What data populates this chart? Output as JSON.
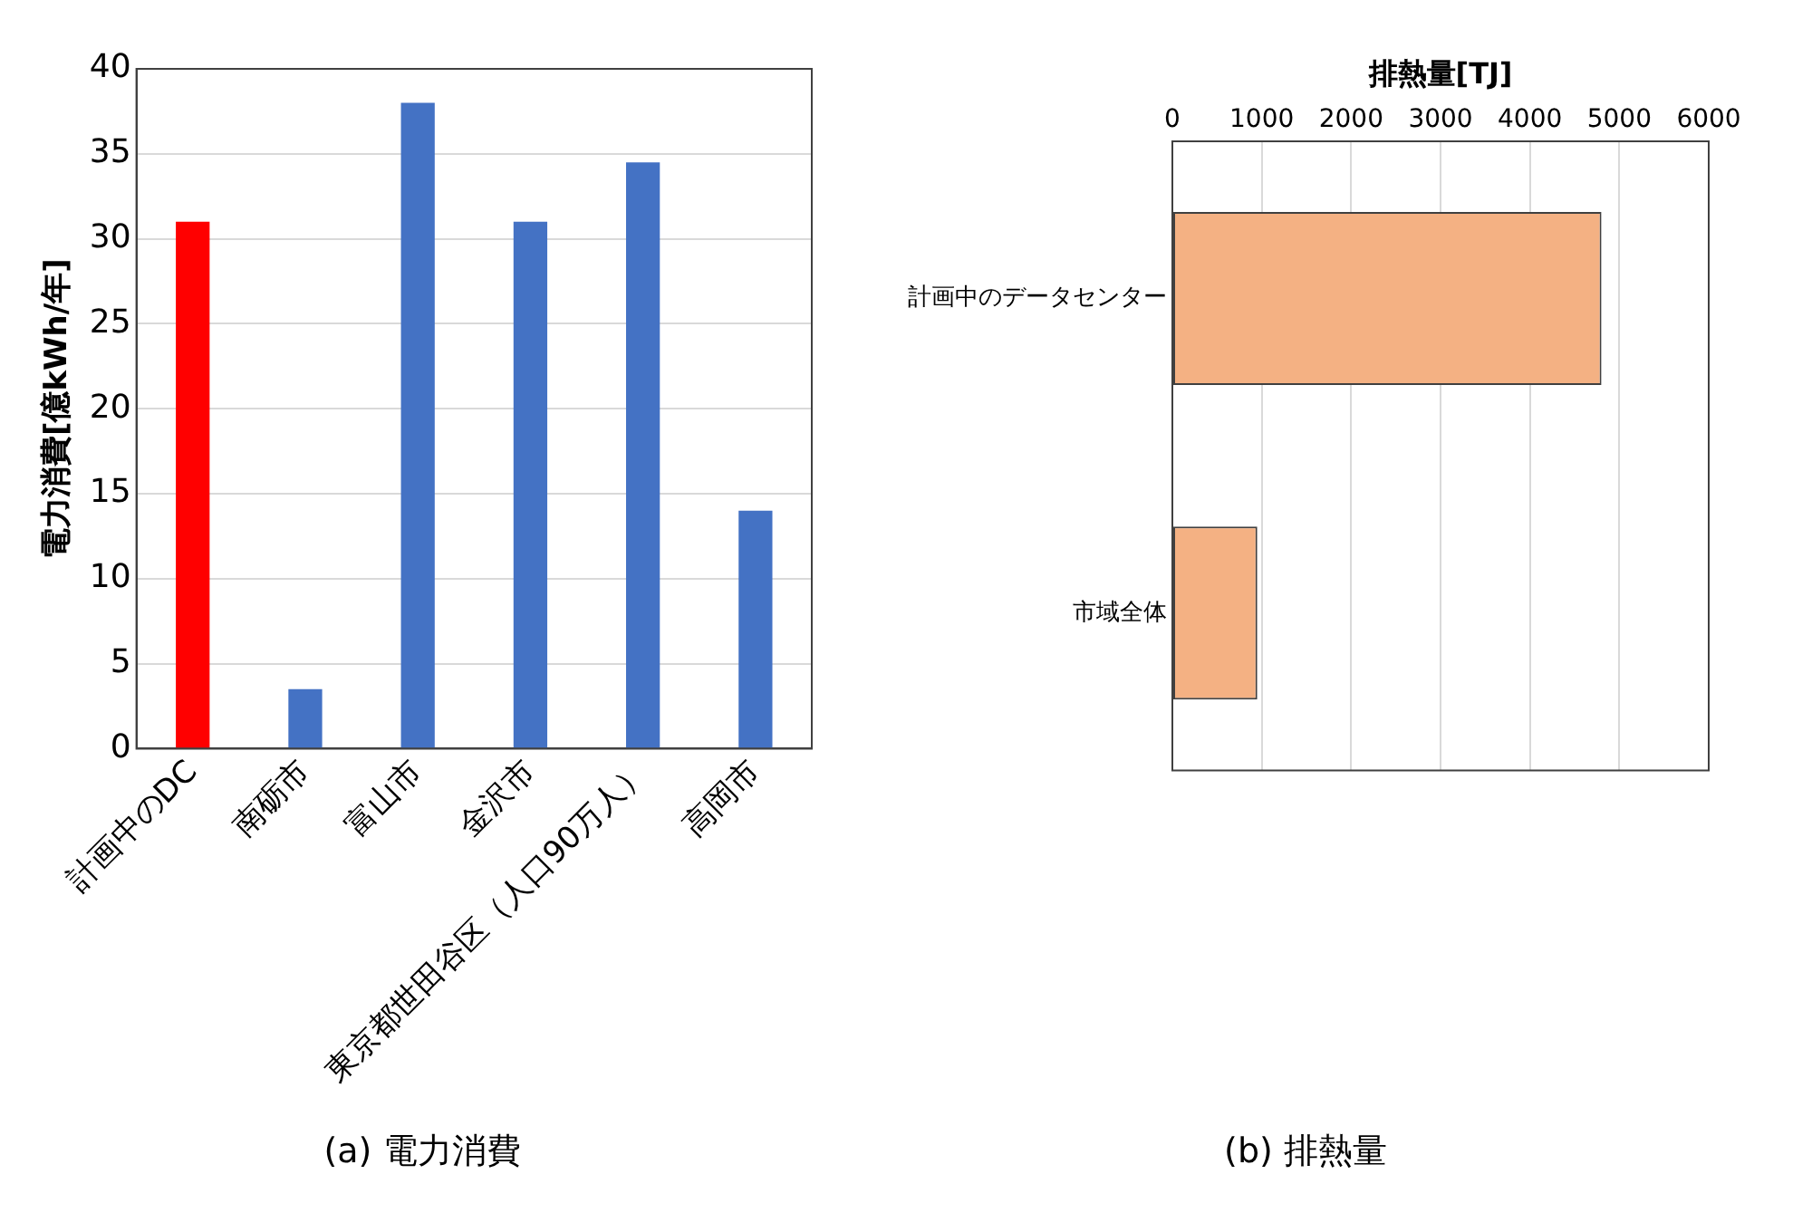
{
  "chart_data": [
    {
      "type": "bar",
      "title": "(a) 電力消費",
      "ylabel": "電力消費[億kWh/年]",
      "categories": [
        "計画中のDC",
        "南砺市",
        "富山市",
        "金沢市",
        "東京都世田谷区（人口90万人）",
        "高岡市"
      ],
      "values": [
        31,
        3.5,
        38,
        31,
        34.5,
        14
      ],
      "colors": [
        "#ff0000",
        "#4472c4",
        "#4472c4",
        "#4472c4",
        "#4472c4",
        "#4472c4"
      ],
      "ylim": [
        0,
        40
      ],
      "yticks": [
        0,
        5,
        10,
        15,
        20,
        25,
        30,
        35,
        40
      ],
      "grid": "y",
      "legend": false
    },
    {
      "type": "bar",
      "orientation": "horizontal",
      "title": "(b) 排熱量",
      "xlabel": "排熱量[TJ]",
      "categories": [
        "計画中のデータセンター",
        "市域全体"
      ],
      "values": [
        4800,
        950
      ],
      "color": "#f4b183",
      "xlim": [
        0,
        6000
      ],
      "xticks": [
        0,
        1000,
        2000,
        3000,
        4000,
        5000,
        6000
      ],
      "grid": "x",
      "legend": false
    }
  ]
}
